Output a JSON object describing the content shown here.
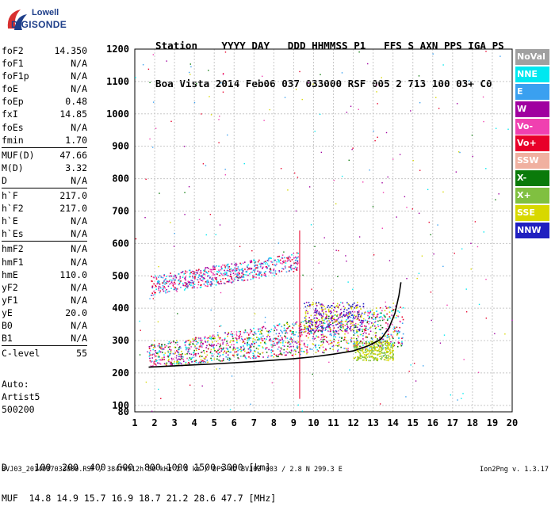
{
  "logo": {
    "line1": "Lowell",
    "line2": "DIGISONDE"
  },
  "header": {
    "labels": "Station    YYYY DAY   DDD HHMMSS P1   FFS S AXN PPS IGA PS",
    "values": "Boa Vista 2014 Feb06 037 033000 RSF 005 2 713 100 03+ C0"
  },
  "params": [
    {
      "name": "foF2",
      "value": "14.350"
    },
    {
      "name": "foF1",
      "value": "N/A"
    },
    {
      "name": "foF1p",
      "value": "N/A"
    },
    {
      "name": "foE",
      "value": "N/A"
    },
    {
      "name": "foEp",
      "value": "0.48"
    },
    {
      "name": "fxI",
      "value": "14.85"
    },
    {
      "name": "foEs",
      "value": "N/A"
    },
    {
      "name": "fmin",
      "value": "1.70"
    },
    {
      "name": "MUF(D)",
      "value": "47.66",
      "sep": true
    },
    {
      "name": "M(D)",
      "value": "3.32"
    },
    {
      "name": "D",
      "value": "N/A"
    },
    {
      "name": "h`F",
      "value": "217.0",
      "sep": true
    },
    {
      "name": "h`F2",
      "value": "217.0"
    },
    {
      "name": "h`E",
      "value": "N/A"
    },
    {
      "name": "h`Es",
      "value": "N/A"
    },
    {
      "name": "hmF2",
      "value": "N/A",
      "sep": true
    },
    {
      "name": "hmF1",
      "value": "N/A"
    },
    {
      "name": "hmE",
      "value": "110.0"
    },
    {
      "name": "yF2",
      "value": "N/A"
    },
    {
      "name": "yF1",
      "value": "N/A"
    },
    {
      "name": "yE",
      "value": "20.0"
    },
    {
      "name": "B0",
      "value": "N/A"
    },
    {
      "name": "B1",
      "value": "N/A"
    },
    {
      "name": "C-level",
      "value": "55",
      "sep": true
    }
  ],
  "auto": {
    "line1": "Auto:",
    "line2": "Artist5",
    "line3": "500200"
  },
  "footer": {
    "distance_row": "D     100  200  400  600  800 1000 1500 3000 [km]",
    "muf_row": "MUF  14.8 14.9 15.7 16.9 18.7 21.2 28.6 47.7 [MHz]",
    "file_info": "BVJ03_2014037033000.RSF / 384fx512h 50 kHz 2.5 km / DPS-4D BVJ03 003 / 2.8 N 299.3 E",
    "version": "Ion2Png v. 1.3.17"
  },
  "legend": [
    {
      "label": "NoVal",
      "color": "#a0a0a0"
    },
    {
      "label": "NNE",
      "color": "#00e8f0"
    },
    {
      "label": "E",
      "color": "#3aa0f0"
    },
    {
      "label": "W",
      "color": "#a000a0"
    },
    {
      "label": "Vo-",
      "color": "#f040b0"
    },
    {
      "label": "Vo+",
      "color": "#e8002a"
    },
    {
      "label": "SSW",
      "color": "#f0b0a0"
    },
    {
      "label": "X-",
      "color": "#0a7a0a"
    },
    {
      "label": "X+",
      "color": "#80c040"
    },
    {
      "label": "SSE",
      "color": "#d8d800"
    },
    {
      "label": "NNW",
      "color": "#2020c0"
    }
  ],
  "chart_data": {
    "type": "scatter",
    "xlim": [
      1,
      20
    ],
    "ylim": [
      80,
      1200
    ],
    "x_ticks": [
      1,
      2,
      3,
      4,
      5,
      6,
      7,
      8,
      9,
      10,
      11,
      12,
      13,
      14,
      15,
      16,
      17,
      18,
      19,
      20
    ],
    "y_ticks": [
      80,
      100,
      200,
      300,
      400,
      500,
      600,
      700,
      800,
      900,
      1000,
      1100,
      1200
    ],
    "grid": true,
    "trace": {
      "x": [
        1.7,
        3,
        5,
        7,
        9,
        10,
        11,
        12,
        12.8,
        13.4,
        13.8,
        14.1,
        14.3,
        14.4
      ],
      "y": [
        218,
        222,
        228,
        235,
        244,
        250,
        258,
        268,
        285,
        305,
        340,
        385,
        440,
        480
      ]
    },
    "echo_regions": [
      {
        "x": [
          1.7,
          14.5
        ],
        "y": [
          215,
          340
        ],
        "colors": [
          "#3aa0f0",
          "#00e8f0",
          "#a000a0",
          "#e8002a",
          "#f040b0",
          "#0a7a0a",
          "#d8d800"
        ]
      },
      {
        "x": [
          1.8,
          9.2
        ],
        "y": [
          440,
          560
        ],
        "colors": [
          "#3aa0f0",
          "#a000a0",
          "#e8002a",
          "#f040b0",
          "#00e8f0"
        ]
      },
      {
        "x": [
          9.5,
          12.5
        ],
        "y": [
          330,
          420
        ],
        "colors": [
          "#2020c0",
          "#a000a0",
          "#d8d800"
        ]
      },
      {
        "x": [
          12,
          14
        ],
        "y": [
          240,
          300
        ],
        "colors": [
          "#d8d800",
          "#80c040"
        ]
      }
    ]
  }
}
